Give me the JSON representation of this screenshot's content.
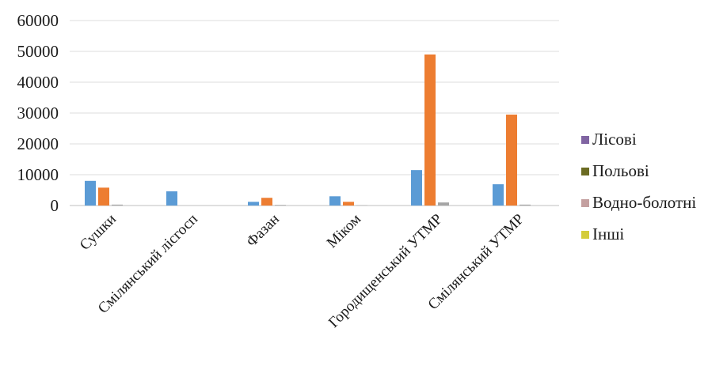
{
  "chart_data": {
    "type": "bar",
    "categories": [
      "Сушки",
      "Смілянський лісгосп",
      "Фазан",
      "Міком",
      "Городищенський УТМР",
      "Смілянський УТМР"
    ],
    "series": [
      {
        "name": "Лісові",
        "color": "#5b9bd5",
        "values": [
          8000,
          4600,
          1200,
          3000,
          11500,
          6900
        ]
      },
      {
        "name": "Польові",
        "color": "#ed7d31",
        "values": [
          5800,
          0,
          2500,
          1200,
          49000,
          29500
        ]
      },
      {
        "name": "Водно-болотні",
        "color": "#a5a5a5",
        "values": [
          300,
          0,
          200,
          100,
          1000,
          300
        ]
      },
      {
        "name": "Інші",
        "color": "#ffc000",
        "values": [
          0,
          0,
          0,
          0,
          0,
          0
        ]
      }
    ],
    "legend_entries": [
      {
        "label": "Лісові",
        "color": "#8064a2"
      },
      {
        "label": "Польові",
        "color": "#6b6b22"
      },
      {
        "label": "Водно-болотні",
        "color": "#c4a0a0"
      },
      {
        "label": "Інші",
        "color": "#d4cc3a"
      }
    ],
    "y_ticks": [
      "0",
      "10000",
      "20000",
      "30000",
      "40000",
      "50000",
      "60000"
    ],
    "ylim": [
      0,
      60000
    ],
    "grid": true,
    "legend_position": "right",
    "title": "",
    "xlabel": "",
    "ylabel": ""
  }
}
